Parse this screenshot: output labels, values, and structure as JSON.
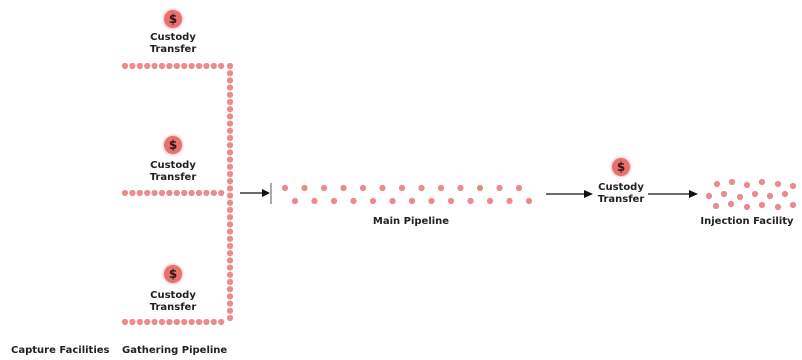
{
  "nodes": {
    "custody_top": {
      "icon": "dollar-icon",
      "symbol": "$",
      "label_line1": "Custody",
      "label_line2": "Transfer"
    },
    "custody_middle": {
      "icon": "dollar-icon",
      "symbol": "$",
      "label_line1": "Custody",
      "label_line2": "Transfer"
    },
    "custody_bottom": {
      "icon": "dollar-icon",
      "symbol": "$",
      "label_line1": "Custody",
      "label_line2": "Transfer"
    },
    "custody_right": {
      "icon": "dollar-icon",
      "symbol": "$",
      "label_line1": "Custody",
      "label_line2": "Transfer"
    },
    "main_pipeline": {
      "label": "Main Pipeline"
    },
    "injection_facility": {
      "label": "Injection Facility"
    }
  },
  "footer_labels": {
    "capture_facilities": "Capture Facilities",
    "gathering_pipeline": "Gathering Pipeline"
  },
  "colors": {
    "dot": "#ee8a8a",
    "badge": "#e8706e",
    "text": "#222222",
    "arrow": "#111111"
  }
}
